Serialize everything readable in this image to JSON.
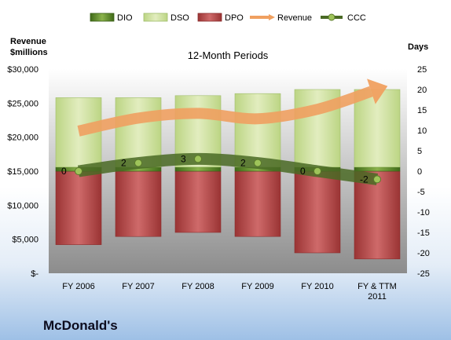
{
  "chart_data": {
    "type": "bar",
    "title": "12-Month Periods",
    "company": "McDonald's",
    "categories": [
      "FY 2006",
      "FY 2007",
      "FY 2008",
      "FY 2009",
      "FY 2010",
      "FY & TTM 2011"
    ],
    "left_axis": {
      "label_line1": "Revenue",
      "label_line2": "$millions",
      "min": 0,
      "max": 30000,
      "ticks": [
        "$-",
        "$5,000",
        "$10,000",
        "$15,000",
        "$20,000",
        "$25,000",
        "$30,000"
      ]
    },
    "right_axis": {
      "label": "Days",
      "min": -25,
      "max": 25,
      "ticks": [
        "-25",
        "-20",
        "-15",
        "-10",
        "-5",
        "0",
        "5",
        "10",
        "15",
        "20",
        "25"
      ]
    },
    "series": [
      {
        "name": "DIO",
        "axis": "right",
        "values": [
          1,
          1,
          1,
          1,
          1,
          1
        ]
      },
      {
        "name": "DSO",
        "axis": "right",
        "values": [
          17,
          17,
          17.5,
          18,
          19,
          19
        ]
      },
      {
        "name": "DPO",
        "axis": "right",
        "values": [
          -18,
          -16,
          -15,
          -16,
          -20,
          -21.5
        ]
      },
      {
        "name": "Revenue",
        "axis": "left",
        "values": [
          20900,
          22800,
          23500,
          22700,
          24100,
          27000
        ]
      },
      {
        "name": "CCC",
        "axis": "right",
        "values": [
          0,
          2,
          3,
          2,
          0,
          -2
        ]
      }
    ],
    "ccc_labels": [
      "0",
      "2",
      "3",
      "2",
      "0",
      "-2"
    ],
    "colors": {
      "DIO": "#4f7a1e",
      "DSO": "#d3e4a4",
      "DPO": "#b84a4a",
      "Revenue": "#f0a060",
      "CCC": "#4a6a25"
    },
    "legend_position": "top"
  }
}
